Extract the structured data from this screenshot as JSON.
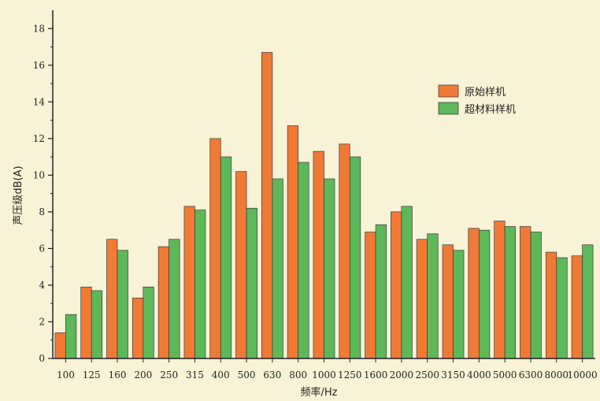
{
  "chart_data": {
    "type": "bar",
    "xlabel": "频率/Hz",
    "ylabel": "声压级dB(A)",
    "ylim": [
      0,
      19
    ],
    "yticks": [
      0,
      2,
      4,
      6,
      8,
      10,
      12,
      14,
      16,
      18
    ],
    "grid": false,
    "legend_position": "top-right",
    "categories": [
      "100",
      "125",
      "160",
      "200",
      "250",
      "315",
      "400",
      "500",
      "630",
      "800",
      "1000",
      "1250",
      "1600",
      "2000",
      "2500",
      "3150",
      "4000",
      "5000",
      "6300",
      "8000",
      "10000"
    ],
    "series": [
      {
        "name": "原始样机",
        "color": "#f07a35",
        "values": [
          1.4,
          3.9,
          6.5,
          3.3,
          6.1,
          8.3,
          12.0,
          10.2,
          16.7,
          12.7,
          11.3,
          11.7,
          6.9,
          8.0,
          6.5,
          6.2,
          7.1,
          7.5,
          7.2,
          5.8,
          5.6
        ]
      },
      {
        "name": "超材料样机",
        "color": "#5db85a",
        "values": [
          2.4,
          3.7,
          5.9,
          3.9,
          6.5,
          8.1,
          11.0,
          8.2,
          9.8,
          10.7,
          9.8,
          11.0,
          7.3,
          8.3,
          6.8,
          5.9,
          7.0,
          7.2,
          6.9,
          5.5,
          6.2
        ]
      }
    ]
  }
}
